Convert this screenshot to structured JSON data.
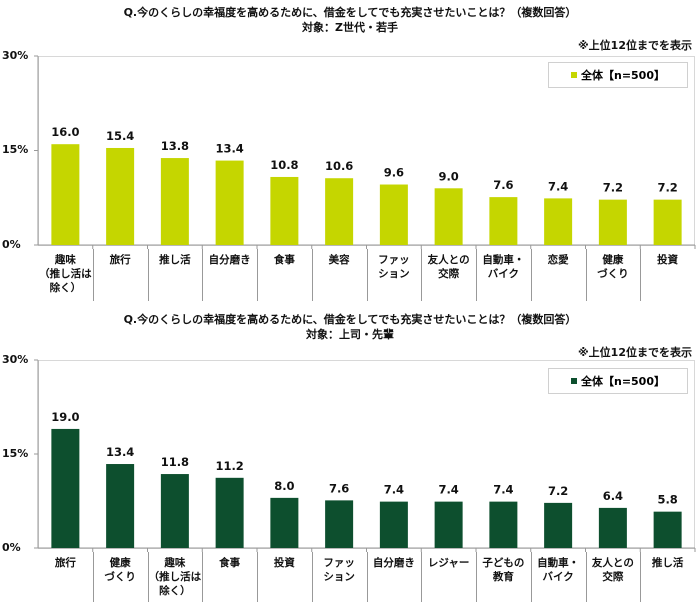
{
  "chart_data": [
    {
      "type": "bar",
      "title": "Q.今のくらしの幸福度を高めるために、借金をしてでも充実させたいことは？（複数回答）",
      "subtitle": "対象：Z世代・若手",
      "note": "※上位12位までを表示",
      "legend": "全体【n=500】",
      "legend_position": "top-right",
      "color": "#c5d600",
      "ylim": [
        0,
        30
      ],
      "yticks": [
        "0%",
        "15%",
        "30%"
      ],
      "categories": [
        "趣味\n（推し活は\n除く）",
        "旅行",
        "推し活",
        "自分磨き",
        "食事",
        "美容",
        "ファッ\nション",
        "友人との\n交際",
        "自動車・\nバイク",
        "恋愛",
        "健康\nづくり",
        "投資"
      ],
      "values": [
        16.0,
        15.4,
        13.8,
        13.4,
        10.8,
        10.6,
        9.6,
        9.0,
        7.6,
        7.4,
        7.2,
        7.2
      ]
    },
    {
      "type": "bar",
      "title": "Q.今のくらしの幸福度を高めるために、借金をしてでも充実させたいことは？（複数回答）",
      "subtitle": "対象：上司・先輩",
      "note": "※上位12位までを表示",
      "legend": "全体【n=500】",
      "legend_position": "top-right",
      "color": "#0d4f2e",
      "ylim": [
        0,
        30
      ],
      "yticks": [
        "0%",
        "15%",
        "30%"
      ],
      "categories": [
        "旅行",
        "健康\nづくり",
        "趣味\n（推し活は\n除く）",
        "食事",
        "投資",
        "ファッ\nション",
        "自分磨き",
        "レジャー",
        "子どもの\n教育",
        "自動車・\nバイク",
        "友人との\n交際",
        "推し活"
      ],
      "values": [
        19.0,
        13.4,
        11.8,
        11.2,
        8.0,
        7.6,
        7.4,
        7.4,
        7.4,
        7.2,
        6.4,
        5.8
      ]
    }
  ]
}
